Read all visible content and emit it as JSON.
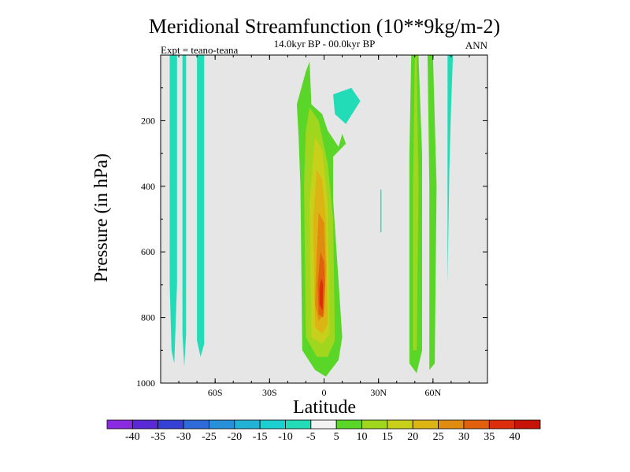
{
  "chart_data": {
    "type": "heatmap",
    "title": "Meridional Streamfunction (10**9kg/m-2)",
    "subtitle": "14.0kyr BP - 00.0kyr BP",
    "left_string": "Expt = teano-teana",
    "right_string": "ANN",
    "xlabel": "Latitude",
    "ylabel": "Pressure (in hPa)",
    "xlim": [
      -90,
      90
    ],
    "ylim": [
      1000,
      0
    ],
    "x_ticks": [
      {
        "value": -60,
        "label": "60S"
      },
      {
        "value": -30,
        "label": "30S"
      },
      {
        "value": 0,
        "label": "0"
      },
      {
        "value": 30,
        "label": "30N"
      },
      {
        "value": 60,
        "label": "60N"
      }
    ],
    "y_ticks": [
      {
        "value": 200,
        "label": "200"
      },
      {
        "value": 400,
        "label": "400"
      },
      {
        "value": 600,
        "label": "600"
      },
      {
        "value": 800,
        "label": "800"
      },
      {
        "value": 1000,
        "label": "1000"
      }
    ],
    "background_color": "#e6e6e6",
    "colorbar": {
      "labels": [
        "-40",
        "-35",
        "-30",
        "-25",
        "-20",
        "-15",
        "-10",
        "-5",
        "5",
        "10",
        "15",
        "20",
        "25",
        "30",
        "35",
        "40"
      ],
      "colors": [
        "#8a2be2",
        "#5a2ad6",
        "#3540d4",
        "#2e6ad8",
        "#2790d8",
        "#22b2d6",
        "#1ccfd0",
        "#22dcb8",
        "#f2f2f2",
        "#5ad628",
        "#a0d61e",
        "#c8d01a",
        "#dcb414",
        "#e08c10",
        "#e0600e",
        "#dc2e0c",
        "#c81408"
      ]
    },
    "contour_fills": [
      {
        "value": -5,
        "color": "#22dcb8",
        "points": [
          [
            -85,
            0
          ],
          [
            -81,
            0
          ],
          [
            -81,
            700
          ],
          [
            -82.5,
            940
          ],
          [
            -84,
            900
          ],
          [
            -85,
            700
          ]
        ]
      },
      {
        "value": -5,
        "color": "#22dcb8",
        "points": [
          [
            -78,
            0
          ],
          [
            -76,
            0
          ],
          [
            -76,
            850
          ],
          [
            -77,
            950
          ],
          [
            -78,
            850
          ]
        ]
      },
      {
        "value": -5,
        "color": "#22dcb8",
        "points": [
          [
            -70,
            0
          ],
          [
            -66,
            0
          ],
          [
            -66,
            880
          ],
          [
            -68,
            920
          ],
          [
            -70,
            870
          ]
        ]
      },
      {
        "value": -5,
        "color": "#22dcb8",
        "points": [
          [
            5,
            120
          ],
          [
            15,
            100
          ],
          [
            20,
            140
          ],
          [
            12,
            210
          ],
          [
            6,
            180
          ]
        ]
      },
      {
        "value": -5,
        "color": "#22dcb8",
        "points": [
          [
            31,
            410
          ],
          [
            31.6,
            410
          ],
          [
            31.6,
            540
          ],
          [
            31,
            540
          ]
        ]
      },
      {
        "value": -5,
        "color": "#22dcb8",
        "points": [
          [
            68,
            0
          ],
          [
            71,
            0
          ],
          [
            70,
            150
          ],
          [
            69,
            350
          ],
          [
            68,
            700
          ]
        ]
      },
      {
        "value": 5,
        "color": "#5ad628",
        "points": [
          [
            -10,
            50
          ],
          [
            -8,
            20
          ],
          [
            -7,
            150
          ],
          [
            -1,
            180
          ],
          [
            2,
            230
          ],
          [
            8,
            280
          ],
          [
            10,
            240
          ],
          [
            12,
            270
          ],
          [
            5,
            310
          ],
          [
            5,
            440
          ],
          [
            10,
            860
          ],
          [
            8,
            930
          ],
          [
            1,
            980
          ],
          [
            -5,
            960
          ],
          [
            -12,
            900
          ],
          [
            -13,
            400
          ],
          [
            -14,
            250
          ],
          [
            -15,
            150
          ]
        ]
      },
      {
        "value": 5,
        "color": "#5ad628",
        "points": [
          [
            48,
            0
          ],
          [
            52,
            0
          ],
          [
            54,
            300
          ],
          [
            54,
            900
          ],
          [
            51,
            970
          ],
          [
            47,
            940
          ],
          [
            47,
            300
          ]
        ]
      },
      {
        "value": 5,
        "color": "#5ad628",
        "points": [
          [
            57,
            0
          ],
          [
            60,
            0
          ],
          [
            62,
            400
          ],
          [
            61,
            940
          ],
          [
            58,
            960
          ],
          [
            58,
            400
          ]
        ]
      },
      {
        "value": 10,
        "color": "#a0d61e",
        "points": [
          [
            -8,
            160
          ],
          [
            -3,
            200
          ],
          [
            2,
            330
          ],
          [
            5,
            500
          ],
          [
            6,
            870
          ],
          [
            2,
            920
          ],
          [
            -4,
            920
          ],
          [
            -10,
            860
          ],
          [
            -11,
            400
          ],
          [
            -10,
            230
          ]
        ]
      },
      {
        "value": 10,
        "color": "#a0d61e",
        "points": [
          [
            50,
            0
          ],
          [
            51,
            0
          ],
          [
            52,
            400
          ],
          [
            51,
            900
          ],
          [
            49,
            900
          ],
          [
            49,
            400
          ]
        ]
      },
      {
        "value": 15,
        "color": "#c8d01a",
        "points": [
          [
            -5,
            250
          ],
          [
            -1,
            290
          ],
          [
            2,
            450
          ],
          [
            3,
            850
          ],
          [
            -1,
            880
          ],
          [
            -7,
            860
          ],
          [
            -8,
            450
          ]
        ]
      },
      {
        "value": 20,
        "color": "#dcb414",
        "points": [
          [
            -4,
            350
          ],
          [
            -1,
            380
          ],
          [
            1,
            500
          ],
          [
            2,
            820
          ],
          [
            -1,
            850
          ],
          [
            -5,
            830
          ],
          [
            -6,
            500
          ]
        ]
      },
      {
        "value": 25,
        "color": "#e08c10",
        "points": [
          [
            -3,
            480
          ],
          [
            0,
            510
          ],
          [
            1,
            650
          ],
          [
            0,
            790
          ],
          [
            -3,
            810
          ],
          [
            -5,
            760
          ],
          [
            -4,
            600
          ]
        ]
      },
      {
        "value": 30,
        "color": "#e0600e",
        "points": [
          [
            -2,
            600
          ],
          [
            0,
            630
          ],
          [
            0.5,
            700
          ],
          [
            -0.5,
            800
          ],
          [
            -3,
            790
          ],
          [
            -3.5,
            700
          ]
        ]
      },
      {
        "value": 35,
        "color": "#dc2e0c",
        "points": [
          [
            -1.5,
            680
          ],
          [
            -0.5,
            700
          ],
          [
            -0.8,
            780
          ],
          [
            -2.5,
            760
          ],
          [
            -2.5,
            710
          ]
        ]
      }
    ]
  }
}
